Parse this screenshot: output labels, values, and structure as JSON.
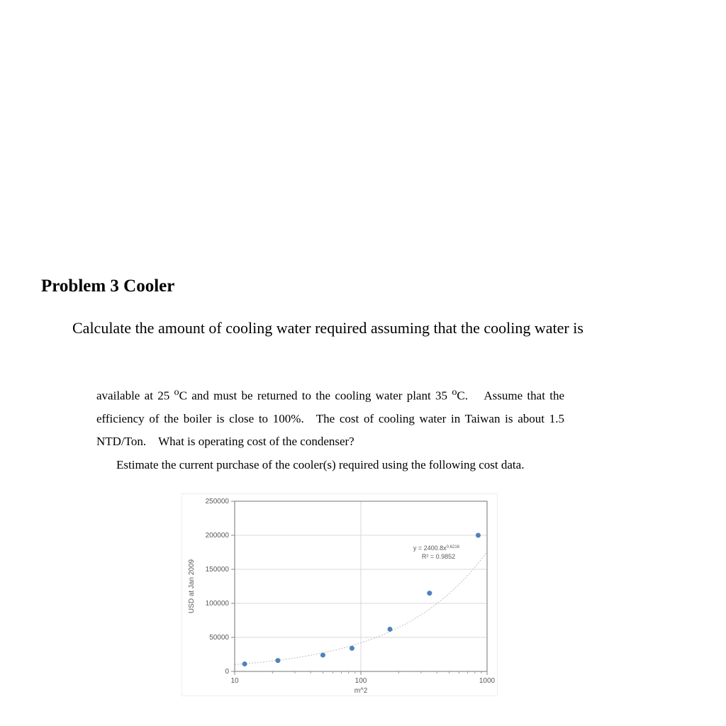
{
  "heading": "Problem 3 Cooler",
  "para1": "Calculate the amount of cooling water required assuming that the cooling water is",
  "para2_pre": "available at 25 ",
  "para2_deg1": "o",
  "para2_mid1": "C and must be returned to the cooling water plant 35 ",
  "para2_deg2": "o",
  "para2_mid2": "C.  Assume that the efficiency of the boiler is close to 100%. The cost of cooling water in Taiwan is about 1.5 NTD/Ton. What is operating cost of the condenser?",
  "para3": "Estimate the current purchase of the cooler(s) required using the following cost data.",
  "chart": {
    "type": "scatter",
    "xscale": "log10",
    "xlim": [
      10,
      1000
    ],
    "ylim": [
      0,
      250000
    ],
    "xtick_values": [
      10,
      100,
      1000
    ],
    "xtick_labels": [
      "10",
      "100",
      "1000"
    ],
    "ytick_values": [
      0,
      50000,
      100000,
      150000,
      200000,
      250000
    ],
    "ytick_labels": [
      "0",
      "50000",
      "100000",
      "150000",
      "200000",
      "250000"
    ],
    "xlabel": "m^2",
    "ylabel": "USD at Jan 2009",
    "points_x": [
      12,
      22,
      50,
      85,
      170,
      350,
      850
    ],
    "points_y": [
      11000,
      16000,
      24000,
      34000,
      62000,
      115000,
      200000
    ],
    "marker_color": "#4f81bd",
    "marker_radius": 3.5,
    "border_color": "#8a8a8a",
    "grid_color": "#d9d9d9",
    "trend_color": "#bfbfbf",
    "background_color": "#ffffff",
    "equation_line1_pre": "y = 2400.8x",
    "equation_line1_sup": "0.6216",
    "equation_line2": "R² = 0.9852",
    "label_fontsize": 10,
    "tick_fontsize": 10
  }
}
